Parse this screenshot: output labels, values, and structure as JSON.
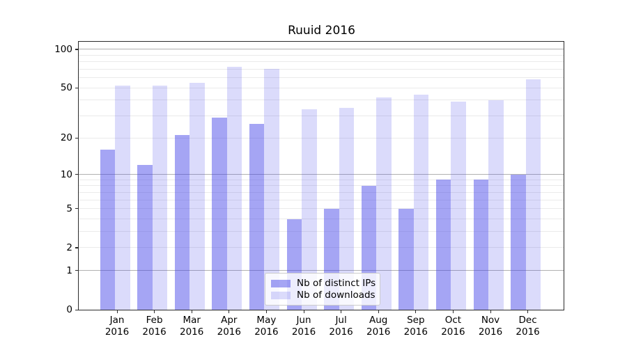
{
  "title": "Ruuid 2016",
  "colors": {
    "bar_base": "#4040e8",
    "bar_distinct_ips": "rgba(64,64,232,0.47)",
    "bar_downloads": "rgba(64,64,232,0.19)",
    "grid_minor": "#eaeaea",
    "grid_emphasized": "#b0b0b0",
    "spine": "#2b2b2b",
    "legend_border": "#cccccc"
  },
  "chart_data": {
    "type": "bar",
    "title": "Ruuid 2016",
    "xlabel": "",
    "ylabel": "",
    "yscale": "log1p",
    "grid": true,
    "legend_position": "lower center",
    "categories": [
      "Jan",
      "Feb",
      "Mar",
      "Apr",
      "May",
      "Jun",
      "Jul",
      "Aug",
      "Sep",
      "Oct",
      "Nov",
      "Dec"
    ],
    "category_year": "2016",
    "series": [
      {
        "name": "Nb of distinct IPs",
        "color": "rgba(64,64,232,0.47)",
        "values": [
          16,
          12,
          21,
          29,
          26,
          4,
          5,
          8,
          5,
          9,
          9,
          10
        ]
      },
      {
        "name": "Nb of downloads",
        "color": "rgba(64,64,232,0.19)",
        "values": [
          52,
          52,
          55,
          73,
          70,
          34,
          35,
          42,
          44,
          39,
          40,
          58
        ]
      }
    ],
    "yticks": [
      0,
      1,
      2,
      5,
      10,
      20,
      50,
      100
    ],
    "emphasized_gridlines": [
      1,
      10,
      100
    ],
    "minor_gridlines": [
      3,
      4,
      6,
      7,
      8,
      9,
      30,
      40,
      60,
      70,
      80,
      90
    ],
    "ylim": [
      0,
      114.5
    ]
  }
}
